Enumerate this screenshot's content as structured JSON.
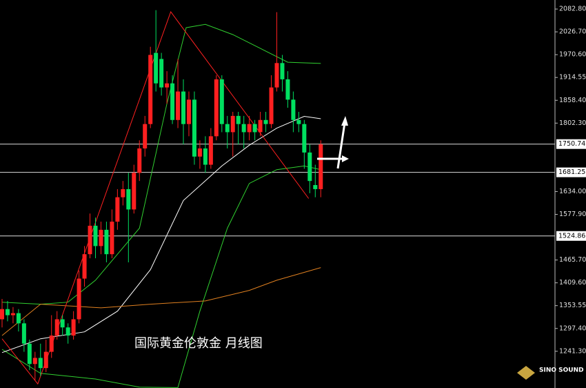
{
  "chart_data": {
    "type": "candlestick",
    "title": "国际黄金伦敦金 月线图",
    "brand": "SINO SOUND",
    "up_color": "#ff2020",
    "down_color": "#00e060",
    "ylim": [
      1151,
      2105
    ],
    "yticks": [
      {
        "value": 2082.8,
        "label": "2082.80"
      },
      {
        "value": 2026.7,
        "label": "2026.70"
      },
      {
        "value": 1970.6,
        "label": "1970.60"
      },
      {
        "value": 1914.55,
        "label": "1914.55"
      },
      {
        "value": 1858.4,
        "label": "1858.40"
      },
      {
        "value": 1802.3,
        "label": "1802.30"
      },
      {
        "value": 1634,
        "label": "1634.00"
      },
      {
        "value": 1577.9,
        "label": "1577.90"
      },
      {
        "value": 1465.7,
        "label": "1465.70"
      },
      {
        "value": 1409.6,
        "label": "1409.60"
      },
      {
        "value": 1353.55,
        "label": "1353.55"
      },
      {
        "value": 1297.4,
        "label": "1297.40"
      },
      {
        "value": 1241.3,
        "label": "1241.30"
      }
    ],
    "levels": [
      {
        "value": 1750.74,
        "label": "1750.74"
      },
      {
        "value": 1681.25,
        "label": "1681.25"
      },
      {
        "value": 1524.86,
        "label": "1524.86"
      }
    ],
    "open": [
      1320,
      1345,
      1330,
      1335,
      1310,
      1260,
      1210,
      1225,
      1200,
      1240,
      1280,
      1320,
      1300,
      1280,
      1320,
      1420,
      1480,
      1550,
      1500,
      1540,
      1480,
      1560,
      1620,
      1640,
      1590,
      1680,
      1740,
      1800,
      1975,
      1960,
      1890,
      1900,
      1810,
      1880,
      1800,
      1860,
      1720,
      1740,
      1700,
      1770,
      1910,
      1800,
      1780,
      1820,
      1800,
      1780,
      1800,
      1780,
      1810,
      1800,
      1890,
      1950,
      1910,
      1860,
      1810,
      1800,
      1730,
      1650,
      1640
    ],
    "high": [
      1370,
      1365,
      1350,
      1345,
      1320,
      1270,
      1240,
      1260,
      1270,
      1330,
      1340,
      1330,
      1310,
      1340,
      1440,
      1500,
      1580,
      1570,
      1560,
      1560,
      1590,
      1640,
      1660,
      1680,
      1700,
      1760,
      1820,
      1990,
      2080,
      1975,
      1930,
      1920,
      1960,
      1910,
      1880,
      1880,
      1760,
      1770,
      1790,
      1920,
      1920,
      1820,
      1830,
      1830,
      1820,
      1820,
      1810,
      1830,
      1830,
      1920,
      2075,
      1970,
      1930,
      1880,
      1830,
      1810,
      1750,
      1700,
      1760
    ],
    "low": [
      1300,
      1315,
      1310,
      1290,
      1240,
      1195,
      1170,
      1180,
      1190,
      1225,
      1270,
      1280,
      1260,
      1270,
      1310,
      1400,
      1470,
      1470,
      1480,
      1460,
      1470,
      1540,
      1600,
      1460,
      1580,
      1660,
      1720,
      1790,
      1880,
      1870,
      1850,
      1800,
      1790,
      1750,
      1770,
      1700,
      1690,
      1680,
      1690,
      1760,
      1780,
      1740,
      1720,
      1750,
      1740,
      1760,
      1760,
      1770,
      1780,
      1790,
      1880,
      1880,
      1840,
      1780,
      1780,
      1690,
      1630,
      1620,
      1620
    ],
    "close": [
      1345,
      1330,
      1335,
      1310,
      1260,
      1210,
      1225,
      1200,
      1240,
      1280,
      1320,
      1300,
      1280,
      1320,
      1420,
      1480,
      1550,
      1500,
      1540,
      1480,
      1560,
      1620,
      1640,
      1590,
      1680,
      1740,
      1800,
      1970,
      1900,
      1890,
      1900,
      1810,
      1880,
      1800,
      1860,
      1720,
      1740,
      1700,
      1770,
      1910,
      1800,
      1780,
      1820,
      1800,
      1780,
      1800,
      1780,
      1810,
      1800,
      1890,
      1950,
      1910,
      1860,
      1810,
      1800,
      1730,
      1660,
      1640,
      1750
    ],
    "lines": [
      {
        "color": "#30d030",
        "x": [
          0,
          7,
          12,
          17,
          25,
          30,
          33.5,
          37,
          42,
          47,
          52,
          58
        ],
        "values": [
          1362,
          1357,
          1362,
          1416,
          1544,
          1850,
          2037,
          2045,
          2020,
          1986,
          1952,
          1949
        ]
      },
      {
        "color": "#30d030",
        "x": [
          0,
          7,
          17,
          25,
          32,
          36,
          41,
          45,
          50,
          55,
          58
        ],
        "values": [
          1246,
          1187,
          1173,
          1153,
          1152,
          1340,
          1544,
          1654,
          1688,
          1697,
          1688
        ]
      },
      {
        "color": "#ffffff",
        "x": [
          0,
          7,
          15,
          21,
          27,
          33,
          40,
          45,
          50,
          55,
          58
        ],
        "values": [
          1238,
          1272,
          1289,
          1340,
          1442,
          1612,
          1697,
          1748,
          1790,
          1819,
          1813
        ]
      },
      {
        "color": "#e08020",
        "x": [
          0,
          7,
          18,
          27,
          37,
          45,
          50,
          58
        ],
        "values": [
          1280,
          1357,
          1348,
          1357,
          1365,
          1391,
          1416,
          1447
        ]
      },
      {
        "color": "#ff2020",
        "x": [
          0,
          6.5,
          30.7,
          55.8
        ],
        "values": [
          1272,
          1161,
          2076,
          1617
        ]
      }
    ]
  }
}
